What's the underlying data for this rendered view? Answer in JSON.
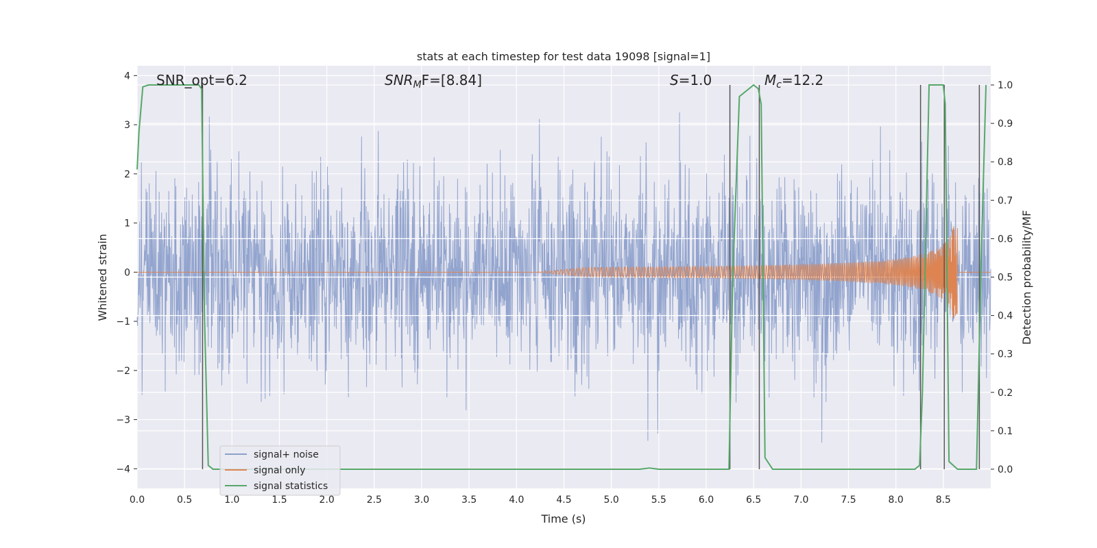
{
  "chart_data": {
    "type": "line",
    "title": "stats at each timestep for test data 19098 [signal=1]",
    "xlabel": "Time (s)",
    "ylabel": "Whitened strain",
    "y2label": "Detection probability/MF",
    "xlim": [
      0,
      9
    ],
    "ylim": [
      -4.4,
      4.2
    ],
    "y2lim": [
      -0.05,
      1.05
    ],
    "xticks": [
      "0.0",
      "0.5",
      "1.0",
      "1.5",
      "2.0",
      "2.5",
      "3.0",
      "3.5",
      "4.0",
      "4.5",
      "5.0",
      "5.5",
      "6.0",
      "6.5",
      "7.0",
      "7.5",
      "8.0",
      "8.5"
    ],
    "yticks": [
      "4",
      "3",
      "2",
      "1",
      "0",
      "−1",
      "−2",
      "−3",
      "−4"
    ],
    "y2ticks": [
      "1.0",
      "0.9",
      "0.8",
      "0.7",
      "0.6",
      "0.5",
      "0.4",
      "0.3",
      "0.2",
      "0.1",
      "0.0"
    ],
    "grid": true,
    "legend_position": "lower-left",
    "annotations": {
      "snr_opt": "SNR_opt=6.2",
      "snr_mf_main": "SNR",
      "snr_mf_sub": "M",
      "snr_mf_rest": "F=[8.84]",
      "s_main": "S",
      "s_rest": "=1.0",
      "mc_main": "M",
      "mc_sub": "c",
      "mc_rest": "=12.2"
    },
    "series": [
      {
        "name": "signal+ noise",
        "color": "#8da0cb",
        "description_values": "gaussian-like whitened noise, amplitude about ±2, peaks to ±3.7"
      },
      {
        "name": "signal only",
        "color": "#dd8452",
        "chirp_start": 4.2,
        "chirp_end": 8.65,
        "peak_amplitude": 0.95
      },
      {
        "name": "signal statistics",
        "color": "#55a868",
        "axis": "right",
        "x": [
          0.0,
          0.02,
          0.06,
          0.12,
          0.3,
          0.5,
          0.65,
          0.68,
          0.71,
          0.75,
          0.8,
          0.9,
          1.5,
          2.5,
          3.5,
          4.5,
          5.0,
          5.3,
          5.4,
          5.5,
          6.0,
          6.24,
          6.28,
          6.35,
          6.5,
          6.55,
          6.58,
          6.62,
          6.7,
          7.0,
          7.5,
          8.0,
          8.2,
          8.25,
          8.28,
          8.35,
          8.5,
          8.52,
          8.56,
          8.65,
          8.75,
          8.85,
          8.9,
          8.95
        ],
        "values": [
          0.78,
          0.88,
          0.995,
          1.0,
          1.0,
          1.0,
          1.0,
          0.99,
          0.4,
          0.01,
          0.0,
          0.0,
          0.0,
          0.0,
          0.0,
          0.0,
          0.0,
          0.0,
          0.003,
          0.0,
          0.0,
          0.0,
          0.5,
          0.97,
          1.0,
          0.99,
          0.95,
          0.03,
          0.0,
          0.0,
          0.0,
          0.0,
          0.0,
          0.01,
          0.2,
          1.0,
          1.0,
          0.95,
          0.02,
          0.0,
          0.0,
          0.0,
          0.55,
          1.0
        ]
      }
    ],
    "vertical_lines_x": [
      0.69,
      6.25,
      6.56,
      8.26,
      8.51,
      8.88
    ]
  }
}
